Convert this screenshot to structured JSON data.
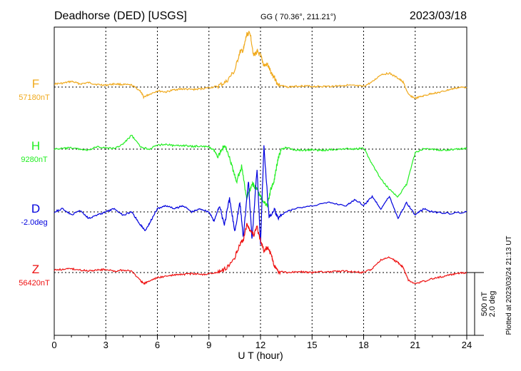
{
  "header": {
    "station": "Deadhorse (DED)  [USGS]",
    "coords": "GG ( 70.36°, 211.21°)",
    "date": "2023/03/18"
  },
  "footer": {
    "plotted": "Plotted at 2023/03/24 21:13 UT"
  },
  "scale": {
    "nt": "500 nT",
    "deg": "2.0 deg"
  },
  "chart_data": {
    "type": "line",
    "xlabel": "U T (hour)",
    "xlim": [
      0,
      24
    ],
    "xticks": [
      0,
      3,
      6,
      9,
      12,
      15,
      18,
      21,
      24
    ],
    "xtick_labels": [
      "0",
      "3",
      "6",
      "9",
      "12",
      "15",
      "18",
      "21",
      "24"
    ],
    "grid": true,
    "series": [
      {
        "name": "F",
        "baseline_label": "57180nT",
        "color": "#f0aa1e",
        "unit": "nT",
        "x": [
          0,
          0.5,
          1,
          1.5,
          2,
          2.5,
          3,
          3.5,
          4,
          4.5,
          5,
          5.2,
          5.5,
          6,
          6.5,
          7,
          7.5,
          8,
          8.5,
          9,
          9.5,
          10,
          10.5,
          10.8,
          11,
          11.2,
          11.4,
          11.6,
          11.8,
          12,
          12.2,
          12.4,
          12.6,
          12.8,
          13,
          13.5,
          14,
          14.5,
          15,
          15.5,
          16,
          16.5,
          17,
          17.5,
          18,
          18.5,
          19,
          19.5,
          20,
          20.3,
          20.6,
          21,
          21.5,
          22,
          22.5,
          23,
          23.5,
          24
        ],
        "values": [
          25,
          30,
          45,
          25,
          35,
          20,
          15,
          25,
          20,
          15,
          -30,
          -80,
          -60,
          -30,
          -40,
          -20,
          -15,
          -20,
          -15,
          -5,
          5,
          40,
          130,
          280,
          290,
          420,
          430,
          250,
          280,
          250,
          170,
          180,
          120,
          80,
          20,
          0,
          5,
          10,
          5,
          5,
          5,
          10,
          15,
          10,
          5,
          40,
          100,
          110,
          70,
          40,
          -60,
          -90,
          -70,
          -50,
          -40,
          -20,
          -5,
          0
        ]
      },
      {
        "name": "H",
        "baseline_label": "9280nT",
        "color": "#22ee22",
        "unit": "nT",
        "x": [
          0,
          0.5,
          1,
          1.5,
          2,
          2.5,
          3,
          3.5,
          4,
          4.5,
          5,
          5.5,
          6,
          6.5,
          7,
          7.5,
          8,
          8.5,
          9,
          9.3,
          9.5,
          9.8,
          10,
          10.3,
          10.6,
          10.9,
          11.2,
          11.5,
          11.7,
          12,
          12.2,
          12.4,
          12.6,
          12.8,
          13,
          13.2,
          13.5,
          14,
          14.5,
          15,
          15.5,
          16,
          16.5,
          17,
          17.5,
          18,
          18.5,
          19,
          19.5,
          20,
          20.5,
          21,
          21.5,
          22,
          22.5,
          23,
          23.5,
          24
        ],
        "values": [
          0,
          5,
          10,
          0,
          -10,
          20,
          10,
          5,
          40,
          110,
          20,
          0,
          30,
          40,
          25,
          30,
          20,
          25,
          15,
          -10,
          -60,
          10,
          20,
          -120,
          -260,
          -140,
          -400,
          -280,
          -300,
          -380,
          -420,
          -450,
          -320,
          -250,
          -90,
          0,
          10,
          -5,
          -10,
          -5,
          -10,
          -5,
          0,
          5,
          0,
          10,
          -120,
          -240,
          -320,
          -380,
          -280,
          -30,
          5,
          0,
          -10,
          -5,
          0,
          5
        ]
      },
      {
        "name": "D",
        "baseline_label": "-2.0deg",
        "color": "#0000dd",
        "unit": "deg",
        "x": [
          0,
          0.5,
          1,
          1.5,
          2,
          2.5,
          3,
          3.5,
          4,
          4.5,
          5,
          5.3,
          5.6,
          6,
          6.5,
          7,
          7.5,
          8,
          8.5,
          9,
          9.3,
          9.6,
          9.9,
          10.2,
          10.5,
          10.8,
          11,
          11.3,
          11.5,
          11.8,
          12,
          12.2,
          12.5,
          12.8,
          13,
          13.5,
          14,
          15,
          16,
          17,
          17.5,
          18,
          18.5,
          19,
          19.5,
          20,
          20.5,
          21,
          21.5,
          22,
          23,
          24
        ],
        "values": [
          0,
          0.1,
          -0.1,
          0.05,
          -0.2,
          -0.1,
          0,
          0.1,
          -0.1,
          0,
          -0.4,
          -0.6,
          -0.3,
          0.1,
          0.2,
          0.1,
          0.2,
          0,
          0.1,
          0,
          -0.3,
          0.2,
          -0.4,
          0.4,
          -0.6,
          0.3,
          -0.8,
          1,
          -0.9,
          1.4,
          -1,
          2.1,
          -0.2,
          0.1,
          -0.2,
          0,
          0.1,
          0.2,
          0.3,
          0.2,
          0.4,
          0.2,
          0.5,
          0.1,
          0.5,
          -0.2,
          0.3,
          -0.1,
          0.1,
          0,
          -0.05,
          0
        ]
      },
      {
        "name": "Z",
        "baseline_label": "56420nT",
        "color": "#ee1111",
        "unit": "nT",
        "x": [
          0,
          0.5,
          1,
          1.5,
          2,
          2.5,
          3,
          3.5,
          4,
          4.5,
          5,
          5.2,
          5.5,
          6,
          6.5,
          7,
          7.5,
          8,
          8.5,
          9,
          9.5,
          10,
          10.5,
          10.8,
          11,
          11.2,
          11.4,
          11.6,
          11.8,
          12,
          12.2,
          12.4,
          12.6,
          12.8,
          13,
          13.5,
          14,
          14.5,
          15,
          15.5,
          16,
          16.5,
          17,
          17.5,
          18,
          18.5,
          19,
          19.5,
          20,
          20.3,
          20.6,
          21,
          21.5,
          22,
          22.5,
          23,
          23.5,
          24
        ],
        "values": [
          20,
          25,
          30,
          20,
          15,
          20,
          25,
          10,
          20,
          10,
          -60,
          -90,
          -70,
          -40,
          -30,
          -20,
          -15,
          -10,
          -15,
          -10,
          0,
          30,
          120,
          230,
          260,
          380,
          340,
          300,
          360,
          250,
          180,
          200,
          150,
          60,
          10,
          0,
          5,
          5,
          0,
          5,
          5,
          10,
          10,
          5,
          0,
          30,
          100,
          120,
          80,
          40,
          -60,
          -90,
          -70,
          -50,
          -35,
          -20,
          -5,
          0
        ]
      }
    ]
  }
}
